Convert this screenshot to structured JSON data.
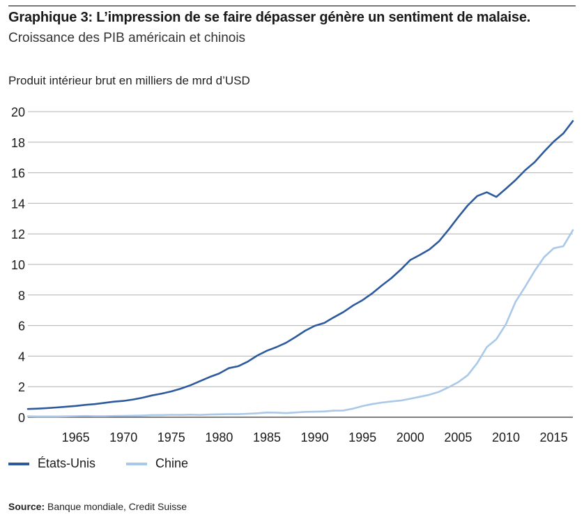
{
  "header": {
    "title": "Graphique 3: L’impression de se faire dépasser génère un sentiment de malaise.",
    "subtitle": "Croissance des PIB américain et chinois"
  },
  "source": {
    "label": "Source:",
    "text": "Banque mondiale, Credit Suisse"
  },
  "colors": {
    "usa": "#2c5a9c",
    "china": "#aac8e8",
    "grid": "#b0b0b0"
  },
  "chart_data": {
    "type": "line",
    "title": "",
    "xlabel": "",
    "ylabel": "Produit intérieur brut en milliers de mrd d’USD",
    "xlim": [
      1960,
      2017
    ],
    "ylim": [
      0,
      20
    ],
    "yticks": [
      "0",
      "2",
      "4",
      "6",
      "8",
      "10",
      "12",
      "14",
      "16",
      "18",
      "20"
    ],
    "xticks": [
      "1965",
      "1970",
      "1975",
      "1980",
      "1985",
      "1990",
      "1995",
      "2000",
      "2005",
      "2010",
      "2015"
    ],
    "grid": "horizontal",
    "legend_position": "bottom",
    "x": [
      1960,
      1961,
      1962,
      1963,
      1964,
      1965,
      1966,
      1967,
      1968,
      1969,
      1970,
      1971,
      1972,
      1973,
      1974,
      1975,
      1976,
      1977,
      1978,
      1979,
      1980,
      1981,
      1982,
      1983,
      1984,
      1985,
      1986,
      1987,
      1988,
      1989,
      1990,
      1991,
      1992,
      1993,
      1994,
      1995,
      1996,
      1997,
      1998,
      1999,
      2000,
      2001,
      2002,
      2003,
      2004,
      2005,
      2006,
      2007,
      2008,
      2009,
      2010,
      2011,
      2012,
      2013,
      2014,
      2015,
      2016,
      2017
    ],
    "series": [
      {
        "name": "États-Unis",
        "values": [
          0.54,
          0.56,
          0.6,
          0.64,
          0.69,
          0.74,
          0.81,
          0.86,
          0.94,
          1.02,
          1.07,
          1.16,
          1.28,
          1.43,
          1.55,
          1.69,
          1.87,
          2.09,
          2.36,
          2.63,
          2.86,
          3.21,
          3.34,
          3.64,
          4.04,
          4.35,
          4.59,
          4.87,
          5.25,
          5.66,
          5.98,
          6.17,
          6.54,
          6.88,
          7.31,
          7.66,
          8.1,
          8.61,
          9.09,
          9.66,
          10.29,
          10.62,
          10.98,
          11.51,
          12.27,
          13.09,
          13.86,
          14.48,
          14.72,
          14.42,
          14.96,
          15.52,
          16.16,
          16.69,
          17.39,
          18.04,
          18.57,
          19.39
        ]
      },
      {
        "name": "Chine",
        "values": [
          0.06,
          0.05,
          0.05,
          0.05,
          0.06,
          0.07,
          0.08,
          0.07,
          0.07,
          0.08,
          0.09,
          0.1,
          0.11,
          0.14,
          0.14,
          0.16,
          0.15,
          0.17,
          0.15,
          0.18,
          0.19,
          0.2,
          0.2,
          0.23,
          0.26,
          0.31,
          0.3,
          0.27,
          0.31,
          0.35,
          0.36,
          0.38,
          0.43,
          0.44,
          0.56,
          0.73,
          0.86,
          0.96,
          1.03,
          1.09,
          1.21,
          1.34,
          1.47,
          1.66,
          1.96,
          2.29,
          2.75,
          3.55,
          4.59,
          5.1,
          6.09,
          7.55,
          8.53,
          9.57,
          10.48,
          11.06,
          11.19,
          12.24
        ]
      }
    ]
  }
}
